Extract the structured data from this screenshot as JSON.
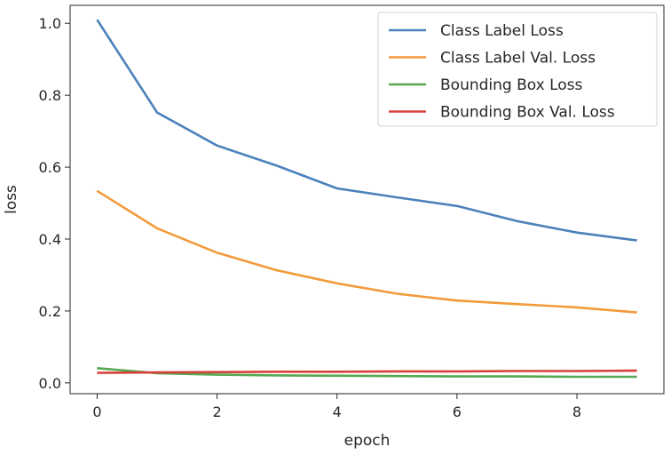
{
  "chart_data": {
    "type": "line",
    "title": "",
    "xlabel": "epoch",
    "ylabel": "loss",
    "xlim": [
      -0.45,
      9.45
    ],
    "ylim": [
      -0.03,
      1.05
    ],
    "x": [
      0,
      1,
      2,
      3,
      4,
      5,
      6,
      7,
      8,
      9
    ],
    "xticks": [
      0,
      2,
      4,
      6,
      8
    ],
    "yticks": [
      0.0,
      0.2,
      0.4,
      0.6,
      0.8,
      1.0
    ],
    "xtick_labels": [
      "0",
      "2",
      "4",
      "6",
      "8"
    ],
    "ytick_labels": [
      "0.0",
      "0.2",
      "0.4",
      "0.6",
      "0.8",
      "1.0"
    ],
    "grid": false,
    "legend_position": "top-right",
    "series": [
      {
        "name": "Class Label Loss",
        "color": "#4c82bb",
        "values": [
          1.01,
          0.752,
          0.66,
          0.604,
          0.541,
          0.516,
          0.492,
          0.45,
          0.418,
          0.396
        ]
      },
      {
        "name": "Class Label Val. Loss",
        "color": "#f39a3a",
        "values": [
          0.534,
          0.43,
          0.362,
          0.313,
          0.277,
          0.248,
          0.229,
          0.219,
          0.21,
          0.196
        ]
      },
      {
        "name": "Bounding Box Loss",
        "color": "#56a851",
        "values": [
          0.041,
          0.027,
          0.023,
          0.021,
          0.02,
          0.019,
          0.018,
          0.018,
          0.017,
          0.017
        ]
      },
      {
        "name": "Bounding Box Val. Loss",
        "color": "#d6403a",
        "values": [
          0.028,
          0.029,
          0.03,
          0.031,
          0.031,
          0.032,
          0.032,
          0.033,
          0.033,
          0.034
        ]
      }
    ]
  }
}
